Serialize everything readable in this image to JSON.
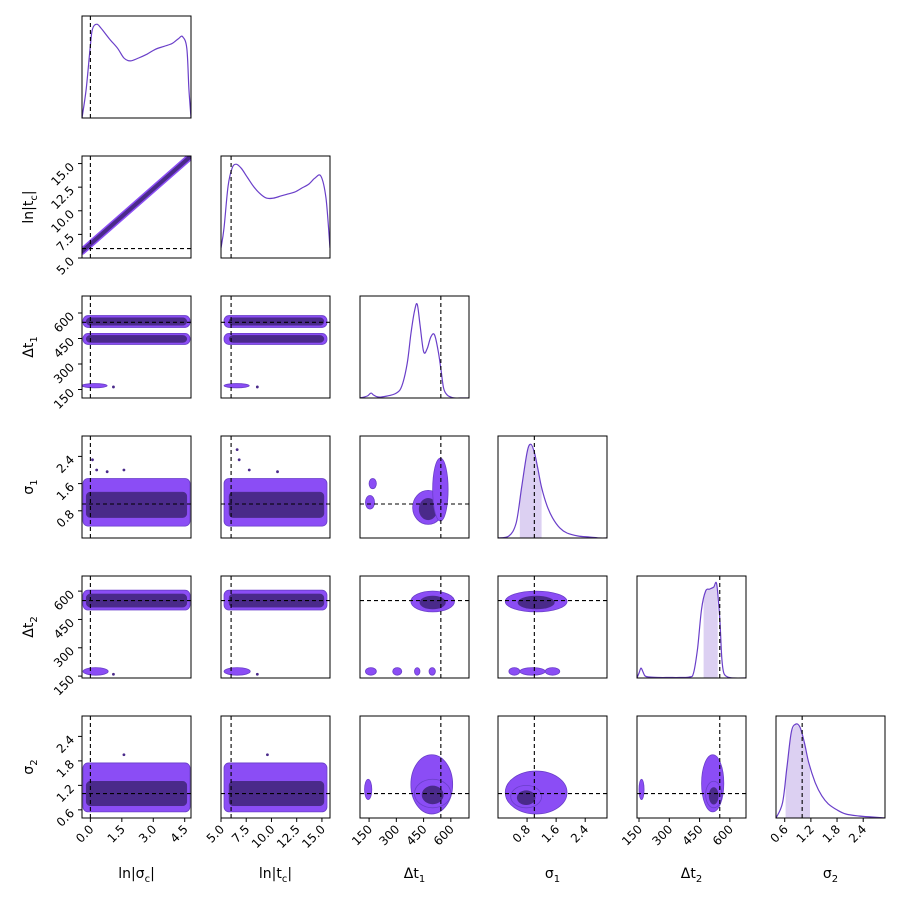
{
  "colors": {
    "line": "#6a3fc9",
    "fill_light": "#8b4df5",
    "fill_dark": "#4a2a8a",
    "band": "#dcd0f2",
    "truth": "#000000"
  },
  "chart_data": {
    "type": "corner",
    "grid": false,
    "parameters": [
      {
        "label": "ln|σc|",
        "range": [
          -0.4,
          4.8
        ],
        "ticks": [
          0.0,
          1.5,
          3.0,
          4.5
        ],
        "tick_labels": [
          "0.0",
          "1.5",
          "3.0",
          "4.5"
        ],
        "truth": 0.0
      },
      {
        "label": "ln|tc|",
        "range": [
          5.0,
          15.8
        ],
        "ticks": [
          5.0,
          7.5,
          10.0,
          12.5,
          15.0
        ],
        "tick_labels": [
          "5.0",
          "7.5",
          "10.0",
          "12.5",
          "15.0"
        ],
        "truth": 6.0
      },
      {
        "label": "Δt1",
        "range": [
          100,
          700
        ],
        "ticks": [
          150,
          300,
          450,
          600
        ],
        "tick_labels": [
          "150",
          "300",
          "450",
          "600"
        ],
        "truth": 545
      },
      {
        "label": "σ1",
        "range": [
          0.0,
          3.0
        ],
        "ticks": [
          0.8,
          1.6,
          2.4
        ],
        "tick_labels": [
          "0.8",
          "1.6",
          "2.4"
        ],
        "truth": 1.0
      },
      {
        "label": "Δt2",
        "range": [
          140,
          680
        ],
        "ticks": [
          150,
          300,
          450,
          600
        ],
        "tick_labels": [
          "150",
          "300",
          "450",
          "600"
        ],
        "truth": 550
      },
      {
        "label": "σ2",
        "range": [
          0.4,
          2.9
        ],
        "ticks": [
          0.6,
          1.2,
          1.8,
          2.4
        ],
        "tick_labels": [
          "0.6",
          "1.2",
          "1.8",
          "2.4"
        ],
        "truth": 1.0
      }
    ],
    "y_axis_labels": {
      "1": {
        "label": "ln|tc|",
        "ticks": [
          5.0,
          7.5,
          10.0,
          12.5,
          15.0
        ],
        "tick_labels": [
          "5.0",
          "7.5",
          "10.0",
          "12.5",
          "15.0"
        ]
      },
      "2": {
        "label": "Δt1",
        "ticks": [
          150,
          300,
          450,
          600
        ],
        "tick_labels": [
          "150",
          "300",
          "450",
          "600"
        ]
      },
      "3": {
        "label": "σ1",
        "ticks": [
          0.8,
          1.6,
          2.4
        ],
        "tick_labels": [
          "0.8",
          "1.6",
          "2.4"
        ]
      },
      "4": {
        "label": "Δt2",
        "ticks": [
          150,
          300,
          450,
          600
        ],
        "tick_labels": [
          "150",
          "300",
          "450",
          "600"
        ]
      },
      "5": {
        "label": "σ2",
        "ticks": [
          0.6,
          1.2,
          1.8,
          2.4
        ],
        "tick_labels": [
          "0.6",
          "1.2",
          "1.8",
          "2.4"
        ]
      }
    },
    "marginals": [
      {
        "param": 0,
        "x": [
          -0.4,
          -0.2,
          0.0,
          0.1,
          0.3,
          0.5,
          0.9,
          1.3,
          1.6,
          1.9,
          2.3,
          2.7,
          3.1,
          3.5,
          3.9,
          4.2,
          4.4,
          4.6,
          4.7,
          4.8
        ],
        "y": [
          0.0,
          0.3,
          0.75,
          0.92,
          0.97,
          0.93,
          0.82,
          0.72,
          0.62,
          0.59,
          0.62,
          0.66,
          0.71,
          0.74,
          0.77,
          0.82,
          0.84,
          0.72,
          0.3,
          0.0
        ]
      },
      {
        "param": 1,
        "x": [
          5.0,
          5.3,
          5.7,
          6.1,
          6.5,
          7.0,
          7.6,
          8.2,
          8.8,
          9.5,
          10.2,
          10.9,
          11.6,
          12.3,
          13.0,
          13.7,
          14.3,
          14.9,
          15.4,
          15.8
        ],
        "y": [
          0.1,
          0.3,
          0.72,
          0.9,
          0.94,
          0.9,
          0.81,
          0.72,
          0.65,
          0.6,
          0.6,
          0.62,
          0.64,
          0.66,
          0.7,
          0.74,
          0.8,
          0.82,
          0.6,
          0.1
        ]
      },
      {
        "param": 2,
        "x": [
          100,
          140,
          160,
          175,
          200,
          250,
          300,
          330,
          360,
          380,
          400,
          415,
          430,
          450,
          470,
          490,
          510,
          530,
          545,
          560,
          580,
          600,
          620,
          650,
          700
        ],
        "y": [
          0.0,
          0.02,
          0.05,
          0.03,
          0.01,
          0.02,
          0.05,
          0.12,
          0.35,
          0.65,
          0.88,
          0.95,
          0.75,
          0.47,
          0.5,
          0.62,
          0.64,
          0.48,
          0.3,
          0.1,
          0.03,
          0.01,
          0.0,
          0.0,
          0.0
        ]
      },
      {
        "param": 3,
        "x": [
          0.0,
          0.3,
          0.5,
          0.65,
          0.8,
          0.9,
          1.0,
          1.1,
          1.2,
          1.35,
          1.5,
          1.7,
          1.9,
          2.2,
          2.5,
          2.8,
          3.0
        ],
        "y": [
          0.0,
          0.02,
          0.15,
          0.5,
          0.85,
          0.93,
          0.85,
          0.68,
          0.5,
          0.32,
          0.2,
          0.1,
          0.05,
          0.02,
          0.01,
          0.0,
          0.0
        ],
        "band": [
          0.6,
          1.2
        ]
      },
      {
        "param": 4,
        "x": [
          140,
          150,
          160,
          170,
          180,
          200,
          250,
          300,
          350,
          400,
          420,
          440,
          460,
          480,
          500,
          520,
          535,
          550,
          560,
          570,
          590,
          620,
          680
        ],
        "y": [
          0.0,
          0.05,
          0.1,
          0.06,
          0.02,
          0.01,
          0.005,
          0.005,
          0.005,
          0.01,
          0.05,
          0.3,
          0.7,
          0.88,
          0.9,
          0.92,
          0.95,
          0.6,
          0.2,
          0.05,
          0.01,
          0.0,
          0.0
        ],
        "band": [
          470,
          540
        ]
      },
      {
        "param": 5,
        "x": [
          0.4,
          0.55,
          0.65,
          0.75,
          0.85,
          0.95,
          1.05,
          1.15,
          1.3,
          1.45,
          1.6,
          1.8,
          2.0,
          2.3,
          2.6,
          2.9
        ],
        "y": [
          0.0,
          0.15,
          0.5,
          0.85,
          0.93,
          0.9,
          0.75,
          0.55,
          0.35,
          0.22,
          0.14,
          0.08,
          0.04,
          0.02,
          0.01,
          0.0
        ],
        "band": [
          0.62,
          1.18
        ]
      }
    ],
    "joint_regions": [
      {
        "row": 1,
        "col": 0,
        "kind": "diag",
        "x0": -0.4,
        "y0": 5.7,
        "x1": 4.8,
        "y1": 15.8,
        "w_outer": 7,
        "w_inner": 4
      },
      {
        "row": 2,
        "col": 0,
        "rects": [
          {
            "x": [
              -0.35,
              4.75
            ],
            "y": [
              415,
              480
            ],
            "dark": [
              -0.2,
              4.6
            ]
          },
          {
            "x": [
              -0.35,
              4.75
            ],
            "y": [
              515,
              585
            ],
            "dark": [
              -0.2,
              4.6
            ]
          }
        ],
        "blobs": [
          {
            "x": [
              -0.4,
              0.8
            ],
            "y": [
              160,
              185
            ]
          }
        ],
        "dots": [
          [
            1.1,
            165
          ]
        ]
      },
      {
        "row": 2,
        "col": 1,
        "rects": [
          {
            "x": [
              5.3,
              15.5
            ],
            "y": [
              415,
              480
            ],
            "dark": [
              5.8,
              15.2
            ]
          },
          {
            "x": [
              5.3,
              15.5
            ],
            "y": [
              515,
              585
            ],
            "dark": [
              5.8,
              15.2
            ]
          }
        ],
        "blobs": [
          {
            "x": [
              5.3,
              7.8
            ],
            "y": [
              160,
              185
            ]
          }
        ],
        "dots": [
          [
            8.6,
            165
          ]
        ]
      },
      {
        "row": 3,
        "col": 0,
        "rects": [
          {
            "x": [
              -0.35,
              4.75
            ],
            "y": [
              0.35,
              1.75
            ],
            "dark": [
              -0.2,
              4.6
            ],
            "dark_y": [
              0.6,
              1.35
            ]
          }
        ],
        "dots": [
          [
            0.1,
            2.3
          ],
          [
            0.3,
            2.0
          ],
          [
            1.6,
            2.0
          ],
          [
            0.8,
            1.95
          ]
        ]
      },
      {
        "row": 3,
        "col": 1,
        "rects": [
          {
            "x": [
              5.3,
              15.5
            ],
            "y": [
              0.35,
              1.75
            ],
            "dark": [
              5.8,
              15.2
            ],
            "dark_y": [
              0.6,
              1.35
            ]
          }
        ],
        "dots": [
          [
            6.6,
            2.6
          ],
          [
            6.8,
            2.3
          ],
          [
            7.8,
            2.0
          ],
          [
            10.6,
            1.95
          ]
        ]
      },
      {
        "row": 3,
        "col": 2,
        "blobs": [
          {
            "x": [
              390,
              560
            ],
            "y": [
              0.4,
              1.4
            ],
            "dark": true
          },
          {
            "x": [
              500,
              585
            ],
            "y": [
              0.5,
              2.35
            ]
          },
          {
            "x": [
              130,
              180
            ],
            "y": [
              0.85,
              1.25
            ]
          },
          {
            "x": [
              150,
              190
            ],
            "y": [
              1.45,
              1.75
            ]
          }
        ]
      },
      {
        "row": 4,
        "col": 2,
        "blobs": [
          {
            "x": [
              380,
              620
            ],
            "y": [
              490,
              600
            ],
            "dark": true
          },
          {
            "x": [
              130,
              190
            ],
            "y": [
              155,
              195
            ]
          },
          {
            "x": [
              280,
              330
            ],
            "y": [
              155,
              195
            ]
          },
          {
            "x": [
              400,
              430
            ],
            "y": [
              155,
              195
            ]
          },
          {
            "x": [
              480,
              515
            ],
            "y": [
              155,
              195
            ]
          }
        ]
      },
      {
        "row": 4,
        "col": 3,
        "blobs": [
          {
            "x": [
              0.2,
              1.9
            ],
            "y": [
              490,
              600
            ],
            "dark": true
          },
          {
            "x": [
              0.3,
              0.6
            ],
            "y": [
              155,
              195
            ]
          },
          {
            "x": [
              0.6,
              1.3
            ],
            "y": [
              155,
              195
            ]
          },
          {
            "x": [
              1.3,
              1.7
            ],
            "y": [
              155,
              195
            ]
          }
        ]
      },
      {
        "row": 4,
        "col": 0,
        "rects": [
          {
            "x": [
              -0.35,
              4.75
            ],
            "y": [
              500,
              605
            ],
            "dark": [
              -0.2,
              4.6
            ],
            "dark_y": [
              515,
              585
            ]
          }
        ],
        "blobs": [
          {
            "x": [
              -0.35,
              0.85
            ],
            "y": [
              155,
              195
            ]
          }
        ],
        "dots": [
          [
            1.1,
            160
          ]
        ]
      },
      {
        "row": 4,
        "col": 1,
        "rects": [
          {
            "x": [
              5.3,
              15.5
            ],
            "y": [
              500,
              605
            ],
            "dark": [
              5.8,
              15.2
            ],
            "dark_y": [
              515,
              585
            ]
          }
        ],
        "blobs": [
          {
            "x": [
              5.3,
              7.9
            ],
            "y": [
              155,
              195
            ]
          }
        ],
        "dots": [
          [
            8.6,
            160
          ]
        ]
      },
      {
        "row": 5,
        "col": 0,
        "rects": [
          {
            "x": [
              -0.35,
              4.75
            ],
            "y": [
              0.55,
              1.75
            ],
            "dark": [
              -0.2,
              4.6
            ],
            "dark_y": [
              0.7,
              1.3
            ]
          }
        ],
        "dots": [
          [
            1.6,
            1.95
          ]
        ]
      },
      {
        "row": 5,
        "col": 1,
        "rects": [
          {
            "x": [
              5.3,
              15.5
            ],
            "y": [
              0.55,
              1.75
            ],
            "dark": [
              5.8,
              15.2
            ],
            "dark_y": [
              0.7,
              1.3
            ]
          }
        ],
        "dots": [
          [
            9.6,
            1.95
          ]
        ]
      },
      {
        "row": 5,
        "col": 2,
        "blobs": [
          {
            "x": [
              380,
              610
            ],
            "y": [
              0.5,
              1.95
            ],
            "dark": false
          },
          {
            "x": [
              400,
              600
            ],
            "y": [
              0.65,
              1.35
            ],
            "dark": true
          },
          {
            "x": [
              125,
              165
            ],
            "y": [
              0.85,
              1.35
            ]
          }
        ]
      },
      {
        "row": 5,
        "col": 3,
        "blobs": [
          {
            "x": [
              0.2,
              1.9
            ],
            "y": [
              0.5,
              1.55
            ]
          },
          {
            "x": [
              0.35,
              1.2
            ],
            "y": [
              0.65,
              1.2
            ],
            "dark": true
          }
        ]
      },
      {
        "row": 5,
        "col": 4,
        "blobs": [
          {
            "x": [
              460,
              570
            ],
            "y": [
              0.55,
              1.95
            ]
          },
          {
            "x": [
              480,
              560
            ],
            "y": [
              0.65,
              1.3
            ],
            "dark": true
          },
          {
            "x": [
              150,
              175
            ],
            "y": [
              0.85,
              1.35
            ]
          }
        ]
      }
    ]
  }
}
